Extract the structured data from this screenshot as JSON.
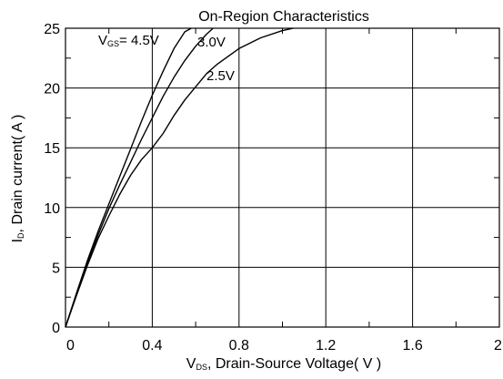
{
  "chart_data": {
    "type": "line",
    "title": "On-Region Characteristics",
    "xlabel": {
      "main": "V",
      "sub": "DS",
      "rest": ", Drain-Source Voltage( V )"
    },
    "ylabel": {
      "main": "I",
      "sub": "D",
      "rest": ", Drain current( A )"
    },
    "xlim": [
      0,
      2
    ],
    "ylim": [
      0,
      25
    ],
    "grid": true,
    "x_ticks": [
      0,
      0.4,
      0.8,
      1.2,
      1.6,
      2
    ],
    "x_tick_labels": [
      "0",
      "0.4",
      "0.8",
      "1.2",
      "1.6",
      "2"
    ],
    "y_ticks": [
      0,
      5,
      10,
      15,
      20,
      25
    ],
    "y_tick_labels": [
      "0",
      "5",
      "10",
      "15",
      "20",
      "25"
    ],
    "series": [
      {
        "name": "V_GS= 4.5V",
        "label_main": "V",
        "label_sub": "GS",
        "label_rest": "= 4.5V",
        "x": [
          0,
          0.05,
          0.1,
          0.15,
          0.2,
          0.25,
          0.3,
          0.35,
          0.4,
          0.45,
          0.5,
          0.55,
          0.58
        ],
        "y": [
          0,
          2.8,
          5.5,
          8.0,
          10.3,
          12.6,
          14.9,
          17.2,
          19.4,
          21.4,
          23.3,
          24.7,
          25
        ]
      },
      {
        "name": "3.0V",
        "label_main": "3.0V",
        "x": [
          0,
          0.05,
          0.1,
          0.15,
          0.2,
          0.25,
          0.3,
          0.35,
          0.4,
          0.45,
          0.5,
          0.55,
          0.6,
          0.65,
          0.68
        ],
        "y": [
          0,
          2.7,
          5.3,
          7.7,
          9.9,
          11.9,
          13.8,
          15.7,
          17.5,
          19.3,
          20.9,
          22.3,
          23.5,
          24.5,
          25
        ]
      },
      {
        "name": "2.5V",
        "label_main": "2.5V",
        "x": [
          0,
          0.05,
          0.1,
          0.15,
          0.2,
          0.25,
          0.3,
          0.35,
          0.4,
          0.45,
          0.5,
          0.55,
          0.6,
          0.65,
          0.7,
          0.8,
          0.9,
          1.0,
          1.05
        ],
        "y": [
          0,
          2.6,
          5.1,
          7.4,
          9.3,
          11.1,
          12.7,
          14.0,
          15.0,
          16.2,
          17.7,
          19.0,
          20.1,
          21.2,
          22.0,
          23.3,
          24.2,
          24.8,
          25
        ]
      }
    ]
  }
}
